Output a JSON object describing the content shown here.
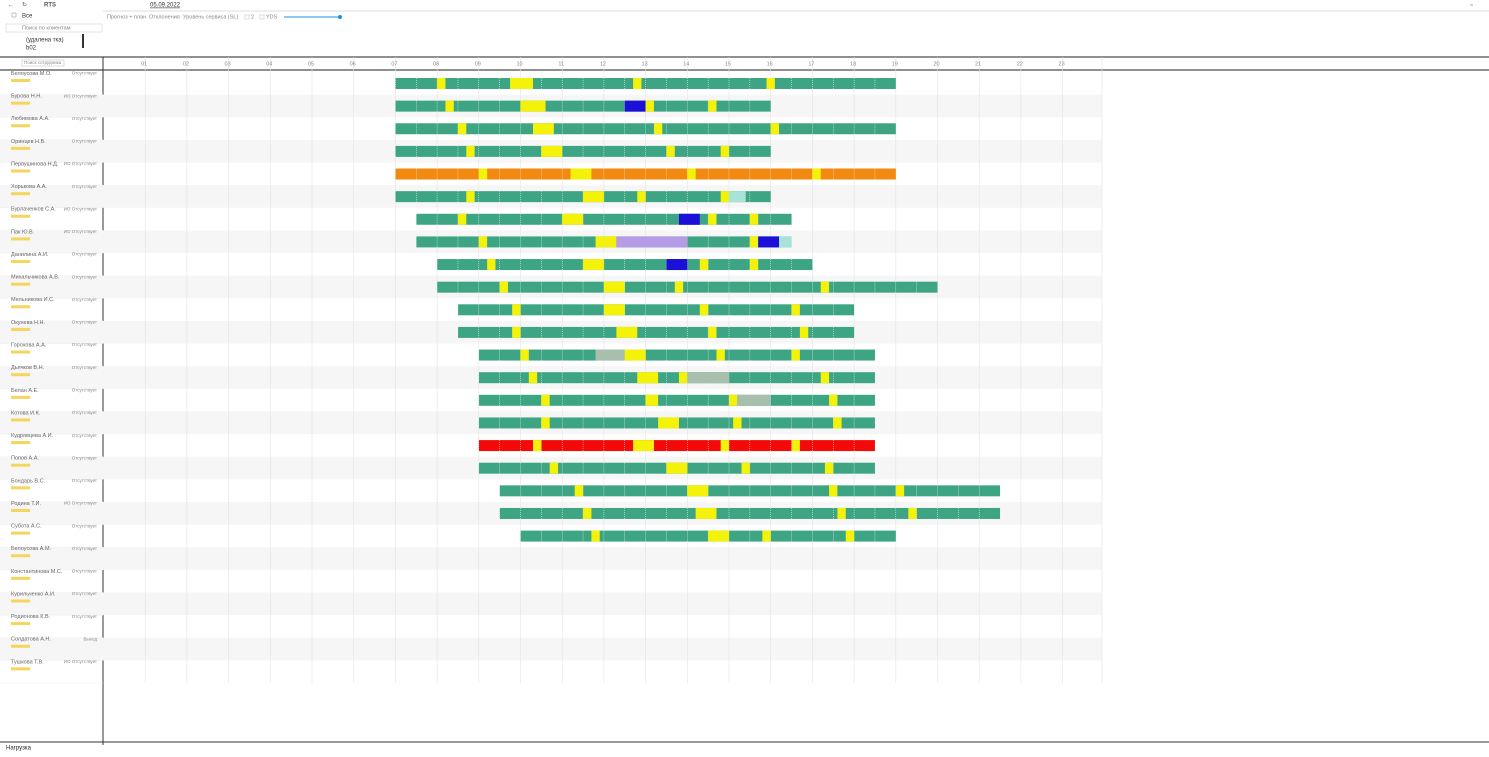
{
  "toolbar": {
    "mode": "RTS",
    "date": "05.09.2022"
  },
  "tabs": [
    "Прогноз + план",
    "Отклонения",
    "Уровень сервиса (SL)"
  ],
  "checks": [
    "2",
    "YDS"
  ],
  "filter": {
    "all": "Все",
    "search": "Поиск по клиентам",
    "items": [
      "(удалена тка)",
      "b02"
    ],
    "employee_search": "Поиск сотрудника"
  },
  "footer": "Нагрузка",
  "hours": [
    {
      "value": 1,
      "label": "01"
    },
    {
      "value": 2,
      "label": "02"
    },
    {
      "value": 3,
      "label": "03"
    },
    {
      "value": 4,
      "label": "04"
    },
    {
      "value": 5,
      "label": "05"
    },
    {
      "value": 6,
      "label": "06"
    },
    {
      "value": 7,
      "label": "07"
    },
    {
      "value": 8,
      "label": "08"
    },
    {
      "value": 9,
      "label": "09"
    },
    10,
    11,
    12,
    13,
    14,
    15,
    16,
    17,
    18,
    19,
    20,
    21,
    22,
    23
  ],
  "palette": {
    "work": "#3ea584",
    "orange": "#f28a12",
    "red": "#f50a0a",
    "break": "#f5f20a",
    "blue": "#1a10d8",
    "purple": "#b69be6",
    "grey": "#a9bfae",
    "light": "#a8e3da"
  },
  "rows": [
    {
      "name": "Белоусова М.О.",
      "status": "Отсутствует",
      "shift": [
        7,
        19
      ],
      "color": "work",
      "parts": [
        [
          8,
          8.2,
          "break"
        ],
        [
          9.75,
          10.3,
          "break"
        ],
        [
          12.7,
          12.9,
          "break"
        ],
        [
          15.9,
          16.1,
          "break"
        ]
      ]
    },
    {
      "name": "Бурова Н.Н.",
      "status": "ИО Отсутствует",
      "shift": [
        7,
        16
      ],
      "color": "work",
      "parts": [
        [
          8.2,
          8.4,
          "break"
        ],
        [
          10,
          10.6,
          "break"
        ],
        [
          12.5,
          13,
          "blue"
        ],
        [
          13,
          13.2,
          "break"
        ],
        [
          14.5,
          14.7,
          "break"
        ]
      ]
    },
    {
      "name": "Любимова А.А.",
      "status": "Отсутствует",
      "shift": [
        7,
        19
      ],
      "color": "work",
      "parts": [
        [
          8.5,
          8.7,
          "break"
        ],
        [
          10.3,
          10.8,
          "break"
        ],
        [
          13.2,
          13.4,
          "break"
        ],
        [
          16,
          16.2,
          "break"
        ]
      ]
    },
    {
      "name": "Оринцев Н.В.",
      "status": "Отсутствует",
      "shift": [
        7,
        16
      ],
      "color": "work",
      "parts": [
        [
          8.7,
          8.9,
          "break"
        ],
        [
          10.5,
          11,
          "break"
        ],
        [
          13.5,
          13.7,
          "break"
        ],
        [
          14.8,
          15,
          "break"
        ]
      ]
    },
    {
      "name": "Первушинова Н.Д.",
      "status": "ИО Отсутствует",
      "shift": [
        7,
        19
      ],
      "color": "orange",
      "parts": [
        [
          9,
          9.2,
          "break"
        ],
        [
          11.2,
          11.7,
          "break"
        ],
        [
          14,
          14.2,
          "break"
        ],
        [
          17,
          17.2,
          "break"
        ]
      ]
    },
    {
      "name": "Хорькова А.А.",
      "status": "Отсутствует",
      "shift": [
        7,
        16
      ],
      "color": "work",
      "parts": [
        [
          8.7,
          8.9,
          "break"
        ],
        [
          11.5,
          12,
          "break"
        ],
        [
          12.8,
          13,
          "break"
        ],
        [
          14.8,
          15,
          "break"
        ],
        [
          15,
          15.4,
          "light"
        ]
      ]
    },
    {
      "name": "Бурлаченков С.А.",
      "status": "ИО Отсутствует",
      "shift": [
        7.5,
        16.5
      ],
      "color": "work",
      "parts": [
        [
          8.5,
          8.7,
          "break"
        ],
        [
          11,
          11.5,
          "break"
        ],
        [
          13.8,
          14.3,
          "blue"
        ],
        [
          14.5,
          14.7,
          "break"
        ],
        [
          15.5,
          15.7,
          "break"
        ]
      ]
    },
    {
      "name": "Пак Ю.В.",
      "status": "ИО Отсутствует",
      "shift": [
        7.5,
        16.5
      ],
      "color": "work",
      "parts": [
        [
          9,
          9.2,
          "break"
        ],
        [
          11.8,
          12.3,
          "break"
        ],
        [
          12.3,
          14,
          "purple"
        ],
        [
          15.5,
          15.7,
          "break"
        ],
        [
          15.7,
          16.2,
          "blue"
        ],
        [
          16.2,
          16.5,
          "light"
        ]
      ]
    },
    {
      "name": "Данилина А.И.",
      "status": "Отсутствует",
      "shift": [
        8,
        17
      ],
      "color": "work",
      "parts": [
        [
          9.2,
          9.4,
          "break"
        ],
        [
          11.5,
          12,
          "break"
        ],
        [
          13.5,
          14,
          "blue"
        ],
        [
          14.3,
          14.5,
          "break"
        ],
        [
          15.5,
          15.7,
          "break"
        ]
      ]
    },
    {
      "name": "Михальчикова А.В.",
      "status": "Отсутствует",
      "shift": [
        8,
        20
      ],
      "color": "work",
      "parts": [
        [
          9.5,
          9.7,
          "break"
        ],
        [
          12,
          12.5,
          "break"
        ],
        [
          13.7,
          13.9,
          "break"
        ],
        [
          17.2,
          17.4,
          "break"
        ]
      ]
    },
    {
      "name": "Мельникова И.С.",
      "status": "Отсутствует",
      "shift": [
        8.5,
        18
      ],
      "color": "work",
      "parts": [
        [
          9.8,
          10,
          "break"
        ],
        [
          12,
          12.5,
          "break"
        ],
        [
          14.3,
          14.5,
          "break"
        ],
        [
          16.5,
          16.7,
          "break"
        ]
      ]
    },
    {
      "name": "Окунева Н.Н.",
      "status": "Отсутствует",
      "shift": [
        8.5,
        18
      ],
      "color": "work",
      "parts": [
        [
          9.8,
          10,
          "break"
        ],
        [
          12.3,
          12.8,
          "break"
        ],
        [
          14.5,
          14.7,
          "break"
        ],
        [
          16.7,
          16.9,
          "break"
        ]
      ]
    },
    {
      "name": "Горохова А.А.",
      "status": "Отсутствует",
      "shift": [
        9,
        18.5
      ],
      "color": "work",
      "parts": [
        [
          10,
          10.2,
          "break"
        ],
        [
          11.8,
          12.5,
          "grey"
        ],
        [
          12.5,
          13,
          "break"
        ],
        [
          14.7,
          14.9,
          "break"
        ],
        [
          16.5,
          16.7,
          "break"
        ]
      ]
    },
    {
      "name": "Дьячков В.Н.",
      "status": "Отсутствует",
      "shift": [
        9,
        18.5
      ],
      "color": "work",
      "parts": [
        [
          10.2,
          10.4,
          "break"
        ],
        [
          12.8,
          13.3,
          "break"
        ],
        [
          13.8,
          14,
          "break"
        ],
        [
          14,
          15,
          "grey"
        ],
        [
          17.2,
          17.4,
          "break"
        ]
      ]
    },
    {
      "name": "Белан А.Е.",
      "status": "Отсутствует",
      "shift": [
        9,
        18.5
      ],
      "color": "work",
      "parts": [
        [
          10.5,
          10.7,
          "break"
        ],
        [
          13,
          13.3,
          "break"
        ],
        [
          15,
          15.2,
          "break"
        ],
        [
          15.2,
          16,
          "grey"
        ],
        [
          17.4,
          17.6,
          "break"
        ]
      ]
    },
    {
      "name": "Котова И.К.",
      "status": "Отсутствует",
      "shift": [
        9,
        18.5
      ],
      "color": "work",
      "parts": [
        [
          10.5,
          10.7,
          "break"
        ],
        [
          13.3,
          13.8,
          "break"
        ],
        [
          15.1,
          15.3,
          "break"
        ],
        [
          17.5,
          17.7,
          "break"
        ]
      ]
    },
    {
      "name": "Кудрявцева А.И.",
      "status": "Отсутствует",
      "shift": [
        9,
        18.5
      ],
      "color": "red",
      "parts": [
        [
          10.3,
          10.5,
          "break"
        ],
        [
          12.7,
          13.2,
          "break"
        ],
        [
          14.8,
          15,
          "break"
        ],
        [
          16.5,
          16.7,
          "break"
        ]
      ]
    },
    {
      "name": "Попов А.А.",
      "status": "Отсутствует",
      "shift": [
        9,
        18.5
      ],
      "color": "work",
      "parts": [
        [
          10.7,
          10.9,
          "break"
        ],
        [
          13.5,
          14,
          "break"
        ],
        [
          15.3,
          15.5,
          "break"
        ],
        [
          17.3,
          17.5,
          "break"
        ]
      ]
    },
    {
      "name": "Бондарь В.С.",
      "status": "Отсутствует",
      "shift": [
        9.5,
        21.5
      ],
      "color": "work",
      "parts": [
        [
          11.3,
          11.5,
          "break"
        ],
        [
          14,
          14.5,
          "break"
        ],
        [
          17.4,
          17.6,
          "break"
        ],
        [
          19,
          19.2,
          "break"
        ]
      ]
    },
    {
      "name": "Родина Т.И.",
      "status": "ИО Отсутствует",
      "shift": [
        9.5,
        21.5
      ],
      "color": "work",
      "parts": [
        [
          11.5,
          11.7,
          "break"
        ],
        [
          14.2,
          14.7,
          "break"
        ],
        [
          17.6,
          17.8,
          "break"
        ],
        [
          19.3,
          19.5,
          "break"
        ]
      ]
    },
    {
      "name": "Субота А.С.",
      "status": "Отсутствует",
      "shift": [
        10,
        19
      ],
      "color": "work",
      "parts": [
        [
          11.7,
          11.9,
          "break"
        ],
        [
          14.5,
          15,
          "break"
        ],
        [
          15.8,
          16,
          "break"
        ],
        [
          17.8,
          18,
          "break"
        ]
      ]
    },
    {
      "name": "Белоусова А.М.",
      "status": "Отсутствует",
      "shift": null,
      "color": "work",
      "parts": []
    },
    {
      "name": "Константинова М.С.",
      "status": "Отсутствует",
      "shift": null,
      "color": "work",
      "parts": []
    },
    {
      "name": "Курильченко А.И.",
      "status": "Отсутствует",
      "shift": null,
      "color": "work",
      "parts": []
    },
    {
      "name": "Родионова К.В.",
      "status": "Отсутствует",
      "shift": null,
      "color": "work",
      "parts": []
    },
    {
      "name": "Солдатова А.Н.",
      "status": "Выход",
      "shift": null,
      "color": "work",
      "parts": []
    },
    {
      "name": "Тушкова Т.В.",
      "status": "ИО Отсутствует",
      "shift": null,
      "color": "work",
      "parts": []
    }
  ]
}
